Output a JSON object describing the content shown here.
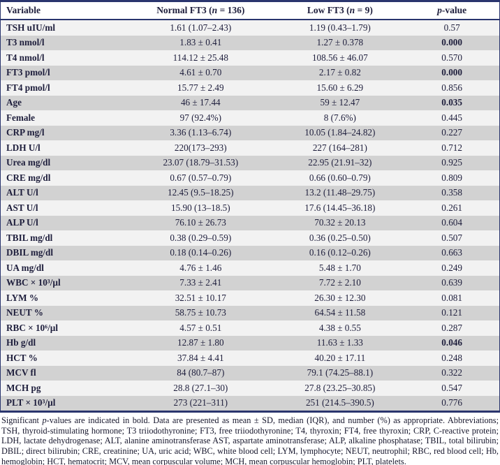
{
  "table": {
    "columns": {
      "variable": "Variable",
      "normal_pre": "Normal FT3 (",
      "normal_it": "n",
      "normal_post": " = 136)",
      "low_pre": "Low FT3 (",
      "low_it": "n",
      "low_post": " = 9)",
      "p_it": "p",
      "p_post": "-value"
    },
    "rows": [
      {
        "variable": "TSH uIU/ml",
        "normal": "1.61 (1.07–2.43)",
        "low": "1.19 (0.43–1.79)",
        "p": "0.57",
        "p_bold": false
      },
      {
        "variable": "T3 nmol/l",
        "normal": "1.83 ± 0.41",
        "low": "1.27 ± 0.378",
        "p": "0.000",
        "p_bold": true
      },
      {
        "variable": "T4 nmol/l",
        "normal": "114.12 ± 25.48",
        "low": "108.56 ± 46.07",
        "p": "0.570",
        "p_bold": false
      },
      {
        "variable": "FT3 pmol/l",
        "normal": "4.61 ± 0.70",
        "low": "2.17 ± 0.82",
        "p": "0.000",
        "p_bold": true
      },
      {
        "variable": "FT4 pmol/l",
        "normal": "15.77 ± 2.49",
        "low": "15.60 ± 6.29",
        "p": "0.856",
        "p_bold": false
      },
      {
        "variable": "Age",
        "normal": "46 ± 17.44",
        "low": "59 ± 12.47",
        "p": "0.035",
        "p_bold": true
      },
      {
        "variable": "Female",
        "normal": "97 (92.4%)",
        "low": "8 (7.6%)",
        "p": "0.445",
        "p_bold": false
      },
      {
        "variable": "CRP mg/l",
        "normal": "3.36 (1.13–6.74)",
        "low": "10.05 (1.84–24.82)",
        "p": "0.227",
        "p_bold": false
      },
      {
        "variable": "LDH U/l",
        "normal": "220(173–293)",
        "low": "227 (164–281)",
        "p": "0.712",
        "p_bold": false
      },
      {
        "variable": "Urea mg/dl",
        "normal": "23.07 (18.79–31.53)",
        "low": "22.95 (21.91–32)",
        "p": "0.925",
        "p_bold": false
      },
      {
        "variable": "CRE mg/dl",
        "normal": "0.67 (0.57–0.79)",
        "low": "0.66 (0.60–0.79)",
        "p": "0.809",
        "p_bold": false
      },
      {
        "variable": "ALT U/l",
        "normal": "12.45 (9.5–18.25)",
        "low": "13.2 (11.48–29.75)",
        "p": "0.358",
        "p_bold": false
      },
      {
        "variable": "AST U/l",
        "normal": "15.90 (13–18.5)",
        "low": "17.6 (14.45–36.18)",
        "p": "0.261",
        "p_bold": false
      },
      {
        "variable": "ALP U/l",
        "normal": "76.10 ± 26.73",
        "low": "70.32 ± 20.13",
        "p": "0.604",
        "p_bold": false
      },
      {
        "variable": "TBIL mg/dl",
        "normal": "0.38 (0.29–0.59)",
        "low": "0.36 (0.25–0.50)",
        "p": "0.507",
        "p_bold": false
      },
      {
        "variable": "DBIL mg/dl",
        "normal": "0.18 (0.14–0.26)",
        "low": "0.16 (0.12–0.26)",
        "p": "0.663",
        "p_bold": false
      },
      {
        "variable": "UA mg/dl",
        "normal": "4.76 ± 1.46",
        "low": "5.48 ± 1.70",
        "p": "0.249",
        "p_bold": false
      },
      {
        "variable": "WBC × 10³/µl",
        "normal": "7.33 ± 2.41",
        "low": "7.72 ± 2.10",
        "p": "0.639",
        "p_bold": false
      },
      {
        "variable": "LYM %",
        "normal": "32.51 ± 10.17",
        "low": "26.30 ± 12.30",
        "p": "0.081",
        "p_bold": false
      },
      {
        "variable": "NEUT %",
        "normal": "58.75 ± 10.73",
        "low": "64.54 ± 11.58",
        "p": "0.121",
        "p_bold": false
      },
      {
        "variable": "RBC × 10⁶/µl",
        "normal": "4.57 ± 0.51",
        "low": "4.38 ± 0.55",
        "p": "0.287",
        "p_bold": false
      },
      {
        "variable": "Hb g/dl",
        "normal": "12.87 ± 1.80",
        "low": "11.63 ± 1.33",
        "p": "0.046",
        "p_bold": true
      },
      {
        "variable": "HCT %",
        "normal": "37.84 ± 4.41",
        "low": "40.20 ± 17.11",
        "p": "0.248",
        "p_bold": false
      },
      {
        "variable": "MCV fl",
        "normal": "84 (80.7–87)",
        "low": "79.1 (74.25–88.1)",
        "p": "0.322",
        "p_bold": false
      },
      {
        "variable": "MCH pg",
        "normal": "28.8 (27.1–30)",
        "low": "27.8 (23.25–30.85)",
        "p": "0.547",
        "p_bold": false
      },
      {
        "variable": "PLT × 10³/µl",
        "normal": "273 (221–311)",
        "low": "251 (214.5–390.5)",
        "p": "0.776",
        "p_bold": false
      }
    ]
  },
  "footnote": {
    "pre": "Significant ",
    "it": "p",
    "rest": "-values are indicated in bold. Data are presented as mean ± SD, median (IQR), and number (%) as appropriate. Abbreviations; TSH, thyroid-stimulating hormone; T3 triiodothyronine; FT3, free triiodothyronine; T4, thyroxin; FT4, free thyroxin; CRP, C-reactive protein; LDH, lactate dehydrogenase; ALT, alanine aminotransferase AST, aspartate aminotransferase; ALP, alkaline phosphatase; TBIL, total bilirubin; DBIL; direct bilirubin; CRE, creatinine; UA, uric acid; WBC, white blood cell; LYM, lymphocyte; NEUT, neutrophil; RBC, red blood cell; Hb, hemoglobin; HCT, hematocrit; MCV, mean corpuscular volume; MCH, mean corpuscular hemoglobin; PLT, platelets."
  },
  "colors": {
    "border_navy": "#2a356e",
    "row_light": "#f2f2f2",
    "row_dark": "#d2d2d2",
    "text": "#1e1e3c"
  }
}
